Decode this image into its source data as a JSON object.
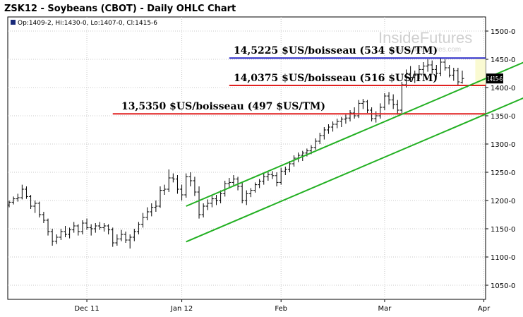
{
  "chart_data": {
    "type": "ohlc",
    "title": "ZSK12 - Soybeans (CBOT) - Daily OHLC Chart",
    "ohlc_readout": "Op:1409-2, Hi:1430-0, Lo:1407-0, Cl:1415-6",
    "last_price_label": "1415-6",
    "ylim": [
      1025,
      1525
    ],
    "y_ticks": [
      1050,
      1100,
      1150,
      1200,
      1250,
      1300,
      1350,
      1400,
      1450,
      1500
    ],
    "y_tick_labels": [
      "1050-0",
      "1100-0",
      "1150-0",
      "1200-0",
      "1250-0",
      "1300-0",
      "1350-0",
      "1400-0",
      "1450-0",
      "1500-0"
    ],
    "x_ticks": [
      "Dec 11",
      "Jan 12",
      "Feb",
      "Mar",
      "Apr"
    ],
    "grid": true,
    "watermark": {
      "name": "InsideFutures",
      "url": "www.insidefutures.com"
    },
    "horizontal_levels": [
      {
        "label": "14,5225 $US/boisseau (534 $US/TM)",
        "value": 1452.25,
        "color": "#2a2ac8"
      },
      {
        "label": "14,0375 $US/boisseau (516 $US/TM)",
        "value": 1403.75,
        "color": "#e02020"
      },
      {
        "label": "13,5350 $US/boisseau (497 $US/TM)",
        "value": 1353.5,
        "color": "#e02020"
      }
    ],
    "trend_channel_color": "#22b022",
    "highlight_zone": {
      "from": 1403.75,
      "to": 1452.25,
      "color": "#fafad2"
    },
    "bars": [
      {
        "o": 1192,
        "h": 1200,
        "l": 1188,
        "c": 1197
      },
      {
        "o": 1197,
        "h": 1207,
        "l": 1193,
        "c": 1203
      },
      {
        "o": 1203,
        "h": 1212,
        "l": 1198,
        "c": 1205
      },
      {
        "o": 1205,
        "h": 1228,
        "l": 1202,
        "c": 1220
      },
      {
        "o": 1220,
        "h": 1225,
        "l": 1203,
        "c": 1207
      },
      {
        "o": 1207,
        "h": 1210,
        "l": 1185,
        "c": 1190
      },
      {
        "o": 1190,
        "h": 1200,
        "l": 1178,
        "c": 1195
      },
      {
        "o": 1195,
        "h": 1198,
        "l": 1170,
        "c": 1175
      },
      {
        "o": 1175,
        "h": 1180,
        "l": 1160,
        "c": 1165
      },
      {
        "o": 1165,
        "h": 1168,
        "l": 1138,
        "c": 1145
      },
      {
        "o": 1145,
        "h": 1150,
        "l": 1120,
        "c": 1128
      },
      {
        "o": 1128,
        "h": 1140,
        "l": 1123,
        "c": 1135
      },
      {
        "o": 1135,
        "h": 1150,
        "l": 1130,
        "c": 1145
      },
      {
        "o": 1145,
        "h": 1155,
        "l": 1135,
        "c": 1140
      },
      {
        "o": 1140,
        "h": 1152,
        "l": 1133,
        "c": 1148
      },
      {
        "o": 1148,
        "h": 1162,
        "l": 1143,
        "c": 1155
      },
      {
        "o": 1155,
        "h": 1158,
        "l": 1138,
        "c": 1145
      },
      {
        "o": 1145,
        "h": 1165,
        "l": 1140,
        "c": 1160
      },
      {
        "o": 1160,
        "h": 1168,
        "l": 1148,
        "c": 1152
      },
      {
        "o": 1152,
        "h": 1158,
        "l": 1138,
        "c": 1150
      },
      {
        "o": 1150,
        "h": 1160,
        "l": 1143,
        "c": 1155
      },
      {
        "o": 1155,
        "h": 1162,
        "l": 1148,
        "c": 1152
      },
      {
        "o": 1152,
        "h": 1160,
        "l": 1145,
        "c": 1155
      },
      {
        "o": 1155,
        "h": 1158,
        "l": 1140,
        "c": 1148
      },
      {
        "o": 1148,
        "h": 1152,
        "l": 1118,
        "c": 1125
      },
      {
        "o": 1125,
        "h": 1140,
        "l": 1120,
        "c": 1132
      },
      {
        "o": 1132,
        "h": 1148,
        "l": 1128,
        "c": 1140
      },
      {
        "o": 1140,
        "h": 1145,
        "l": 1125,
        "c": 1130
      },
      {
        "o": 1130,
        "h": 1140,
        "l": 1115,
        "c": 1135
      },
      {
        "o": 1135,
        "h": 1150,
        "l": 1128,
        "c": 1145
      },
      {
        "o": 1145,
        "h": 1162,
        "l": 1140,
        "c": 1158
      },
      {
        "o": 1158,
        "h": 1178,
        "l": 1152,
        "c": 1170
      },
      {
        "o": 1170,
        "h": 1188,
        "l": 1165,
        "c": 1180
      },
      {
        "o": 1180,
        "h": 1195,
        "l": 1172,
        "c": 1188
      },
      {
        "o": 1188,
        "h": 1200,
        "l": 1180,
        "c": 1190
      },
      {
        "o": 1190,
        "h": 1225,
        "l": 1187,
        "c": 1218
      },
      {
        "o": 1218,
        "h": 1228,
        "l": 1210,
        "c": 1220
      },
      {
        "o": 1220,
        "h": 1255,
        "l": 1215,
        "c": 1240
      },
      {
        "o": 1240,
        "h": 1248,
        "l": 1232,
        "c": 1238
      },
      {
        "o": 1238,
        "h": 1245,
        "l": 1212,
        "c": 1220
      },
      {
        "o": 1220,
        "h": 1228,
        "l": 1200,
        "c": 1210
      },
      {
        "o": 1210,
        "h": 1248,
        "l": 1205,
        "c": 1242
      },
      {
        "o": 1242,
        "h": 1250,
        "l": 1225,
        "c": 1235
      },
      {
        "o": 1235,
        "h": 1242,
        "l": 1208,
        "c": 1215
      },
      {
        "o": 1215,
        "h": 1225,
        "l": 1168,
        "c": 1175
      },
      {
        "o": 1175,
        "h": 1195,
        "l": 1170,
        "c": 1190
      },
      {
        "o": 1190,
        "h": 1202,
        "l": 1183,
        "c": 1195
      },
      {
        "o": 1195,
        "h": 1210,
        "l": 1188,
        "c": 1203
      },
      {
        "o": 1203,
        "h": 1210,
        "l": 1192,
        "c": 1200
      },
      {
        "o": 1200,
        "h": 1218,
        "l": 1195,
        "c": 1212
      },
      {
        "o": 1212,
        "h": 1235,
        "l": 1207,
        "c": 1230
      },
      {
        "o": 1230,
        "h": 1240,
        "l": 1222,
        "c": 1232
      },
      {
        "o": 1232,
        "h": 1245,
        "l": 1225,
        "c": 1238
      },
      {
        "o": 1238,
        "h": 1242,
        "l": 1218,
        "c": 1225
      },
      {
        "o": 1225,
        "h": 1232,
        "l": 1195,
        "c": 1200
      },
      {
        "o": 1200,
        "h": 1218,
        "l": 1192,
        "c": 1212
      },
      {
        "o": 1212,
        "h": 1222,
        "l": 1206,
        "c": 1218
      },
      {
        "o": 1218,
        "h": 1232,
        "l": 1214,
        "c": 1228
      },
      {
        "o": 1228,
        "h": 1238,
        "l": 1222,
        "c": 1234
      },
      {
        "o": 1234,
        "h": 1248,
        "l": 1228,
        "c": 1242
      },
      {
        "o": 1242,
        "h": 1250,
        "l": 1235,
        "c": 1246
      },
      {
        "o": 1246,
        "h": 1252,
        "l": 1238,
        "c": 1244
      },
      {
        "o": 1244,
        "h": 1250,
        "l": 1225,
        "c": 1232
      },
      {
        "o": 1232,
        "h": 1258,
        "l": 1228,
        "c": 1252
      },
      {
        "o": 1252,
        "h": 1260,
        "l": 1245,
        "c": 1255
      },
      {
        "o": 1255,
        "h": 1270,
        "l": 1250,
        "c": 1265
      },
      {
        "o": 1265,
        "h": 1280,
        "l": 1260,
        "c": 1275
      },
      {
        "o": 1275,
        "h": 1285,
        "l": 1268,
        "c": 1280
      },
      {
        "o": 1280,
        "h": 1288,
        "l": 1270,
        "c": 1284
      },
      {
        "o": 1284,
        "h": 1292,
        "l": 1278,
        "c": 1288
      },
      {
        "o": 1288,
        "h": 1298,
        "l": 1282,
        "c": 1294
      },
      {
        "o": 1294,
        "h": 1310,
        "l": 1290,
        "c": 1305
      },
      {
        "o": 1305,
        "h": 1320,
        "l": 1300,
        "c": 1315
      },
      {
        "o": 1315,
        "h": 1330,
        "l": 1308,
        "c": 1325
      },
      {
        "o": 1325,
        "h": 1335,
        "l": 1318,
        "c": 1330
      },
      {
        "o": 1330,
        "h": 1340,
        "l": 1322,
        "c": 1335
      },
      {
        "o": 1335,
        "h": 1345,
        "l": 1328,
        "c": 1340
      },
      {
        "o": 1340,
        "h": 1348,
        "l": 1330,
        "c": 1344
      },
      {
        "o": 1344,
        "h": 1352,
        "l": 1336,
        "c": 1346
      },
      {
        "o": 1346,
        "h": 1360,
        "l": 1340,
        "c": 1355
      },
      {
        "o": 1355,
        "h": 1365,
        "l": 1345,
        "c": 1350
      },
      {
        "o": 1350,
        "h": 1378,
        "l": 1346,
        "c": 1372
      },
      {
        "o": 1372,
        "h": 1380,
        "l": 1362,
        "c": 1375
      },
      {
        "o": 1375,
        "h": 1378,
        "l": 1355,
        "c": 1360
      },
      {
        "o": 1360,
        "h": 1365,
        "l": 1340,
        "c": 1345
      },
      {
        "o": 1345,
        "h": 1358,
        "l": 1338,
        "c": 1350
      },
      {
        "o": 1350,
        "h": 1372,
        "l": 1345,
        "c": 1365
      },
      {
        "o": 1365,
        "h": 1390,
        "l": 1360,
        "c": 1385
      },
      {
        "o": 1385,
        "h": 1392,
        "l": 1370,
        "c": 1378
      },
      {
        "o": 1378,
        "h": 1388,
        "l": 1362,
        "c": 1370
      },
      {
        "o": 1370,
        "h": 1378,
        "l": 1352,
        "c": 1360
      },
      {
        "o": 1360,
        "h": 1410,
        "l": 1355,
        "c": 1405
      },
      {
        "o": 1405,
        "h": 1432,
        "l": 1400,
        "c": 1425
      },
      {
        "o": 1425,
        "h": 1438,
        "l": 1410,
        "c": 1418
      },
      {
        "o": 1418,
        "h": 1430,
        "l": 1408,
        "c": 1422
      },
      {
        "o": 1422,
        "h": 1440,
        "l": 1415,
        "c": 1432
      },
      {
        "o": 1432,
        "h": 1445,
        "l": 1425,
        "c": 1438
      },
      {
        "o": 1438,
        "h": 1450,
        "l": 1428,
        "c": 1440
      },
      {
        "o": 1440,
        "h": 1448,
        "l": 1425,
        "c": 1432
      },
      {
        "o": 1432,
        "h": 1440,
        "l": 1418,
        "c": 1425
      },
      {
        "o": 1425,
        "h": 1452,
        "l": 1420,
        "c": 1445
      },
      {
        "o": 1445,
        "h": 1450,
        "l": 1430,
        "c": 1435
      },
      {
        "o": 1435,
        "h": 1440,
        "l": 1418,
        "c": 1422
      },
      {
        "o": 1422,
        "h": 1435,
        "l": 1412,
        "c": 1430
      },
      {
        "o": 1430,
        "h": 1435,
        "l": 1405,
        "c": 1410
      },
      {
        "o": 1409,
        "h": 1430,
        "l": 1407,
        "c": 1416
      }
    ],
    "x_tick_bar_index": [
      18,
      40,
      63,
      87,
      110
    ],
    "channel": {
      "upper": {
        "from": {
          "bar": 41,
          "value": 1190
        },
        "to": {
          "bar": 131,
          "value": 1483
        }
      },
      "lower": {
        "from": {
          "bar": 41,
          "value": 1127
        },
        "to": {
          "bar": 131,
          "value": 1420
        }
      }
    },
    "level_spans": [
      {
        "from_bar": 51,
        "label_from_bar": 52
      },
      {
        "from_bar": 51,
        "label_from_bar": 52
      },
      {
        "from_bar": 24,
        "label_from_bar": 26
      }
    ],
    "highlight_from_bar": 108
  }
}
